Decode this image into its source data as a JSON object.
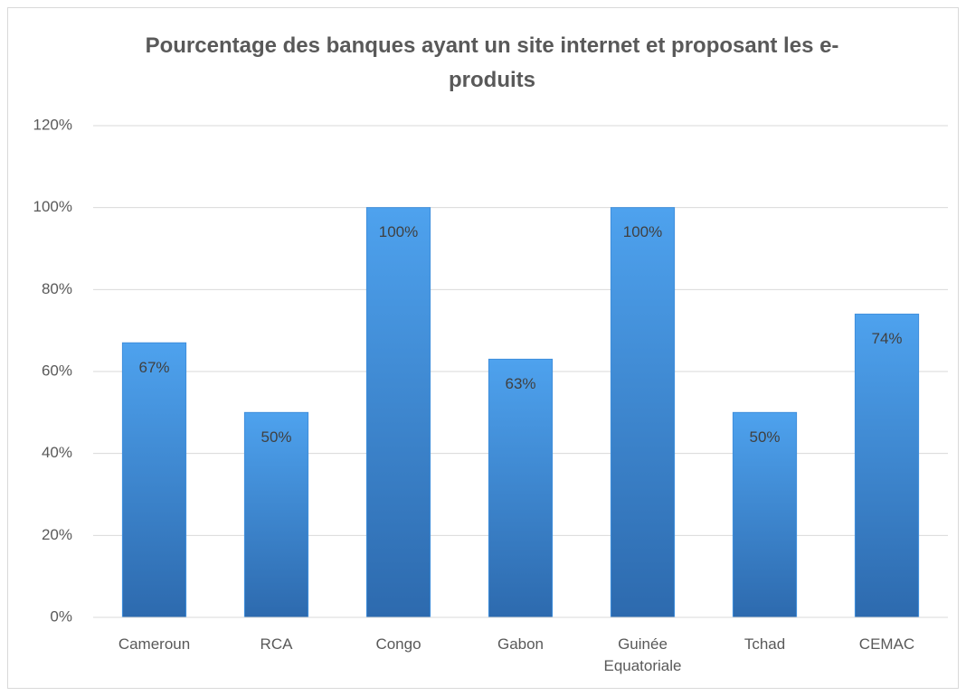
{
  "chart_data": {
    "type": "bar",
    "title": "Pourcentage des banques ayant un site internet et proposant les e-produits",
    "categories": [
      "Cameroun",
      "RCA",
      "Congo",
      "Gabon",
      "Guinée Equatoriale",
      "Tchad",
      "CEMAC"
    ],
    "values": [
      67,
      50,
      100,
      63,
      100,
      50,
      74
    ],
    "value_labels": [
      "67%",
      "50%",
      "100%",
      "63%",
      "100%",
      "50%",
      "74%"
    ],
    "color": "#3f8fdc",
    "ylim": [
      0,
      120
    ],
    "yticks": [
      {
        "value": 0,
        "label": "0%"
      },
      {
        "value": 20,
        "label": "20%"
      },
      {
        "value": 40,
        "label": "40%"
      },
      {
        "value": 60,
        "label": "60%"
      },
      {
        "value": 80,
        "label": "80%"
      },
      {
        "value": 100,
        "label": "100%"
      },
      {
        "value": 120,
        "label": "120%"
      }
    ],
    "grid": true
  }
}
